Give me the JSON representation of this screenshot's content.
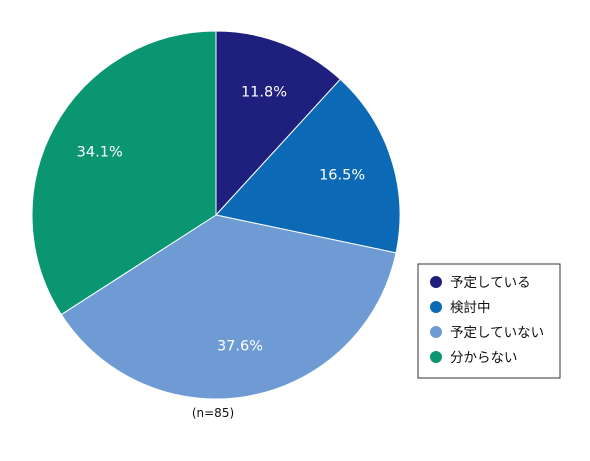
{
  "chart_data": {
    "type": "pie",
    "start": "12 o'clock",
    "direction": "clockwise",
    "categories": [
      "予定している",
      "検討中",
      "予定していない",
      "分からない"
    ],
    "values": [
      11.8,
      16.5,
      37.6,
      34.1
    ],
    "value_labels": [
      "11.8%",
      "16.5%",
      "37.6%",
      "34.1%"
    ],
    "colors": [
      "#1f1f7e",
      "#0c69b5",
      "#6f9bd4",
      "#0b9672"
    ],
    "legend": {
      "placement": "right",
      "border": true
    },
    "note": "(n=85)"
  }
}
